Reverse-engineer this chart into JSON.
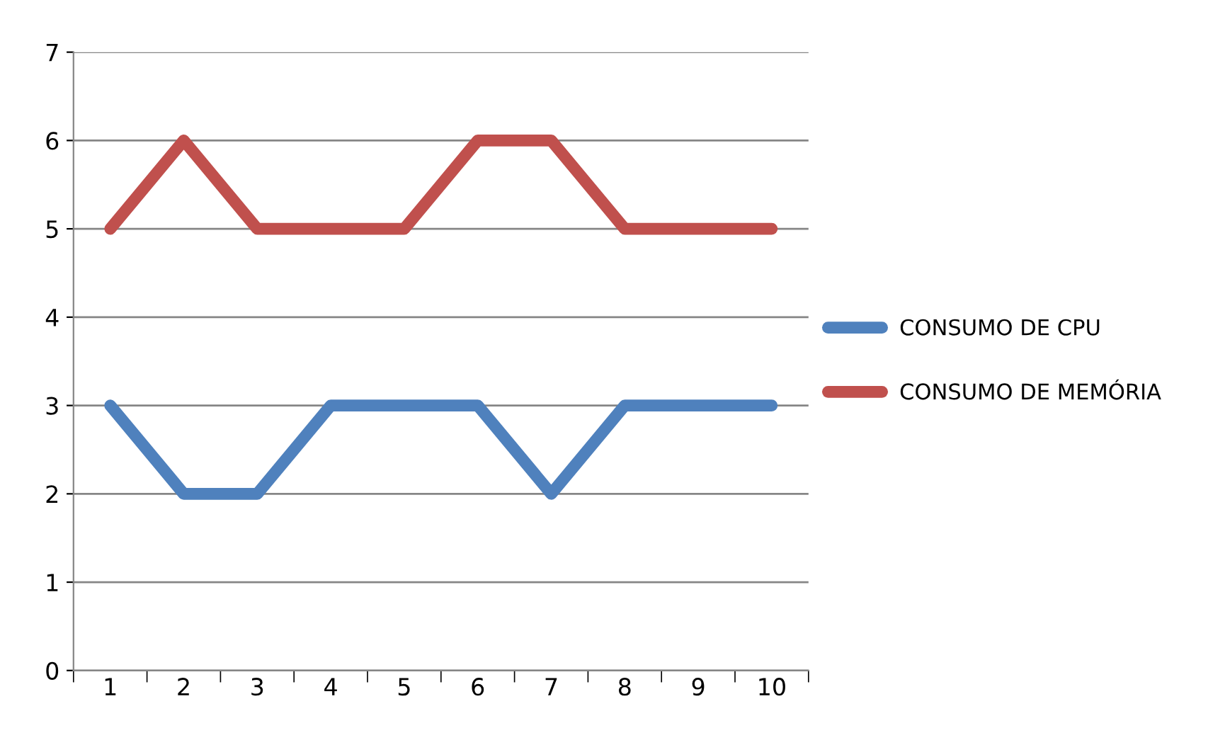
{
  "chart_data": {
    "type": "line",
    "categories": [
      "1",
      "2",
      "3",
      "4",
      "5",
      "6",
      "7",
      "8",
      "9",
      "10"
    ],
    "series": [
      {
        "name": "CONSUMO DE CPU",
        "color": "#4f81bd",
        "values": [
          3,
          2,
          2,
          3,
          3,
          3,
          2,
          3,
          3,
          3
        ]
      },
      {
        "name": "CONSUMO DE MEMÓRIA",
        "color": "#c0504d",
        "values": [
          5,
          6,
          5,
          5,
          5,
          6,
          6,
          5,
          5,
          5
        ]
      }
    ],
    "ylim": [
      0,
      7
    ],
    "yticks": [
      0,
      1,
      2,
      3,
      4,
      5,
      6,
      7
    ],
    "grid": "y",
    "legend": "right",
    "marker": "none",
    "line_style": "solid"
  }
}
